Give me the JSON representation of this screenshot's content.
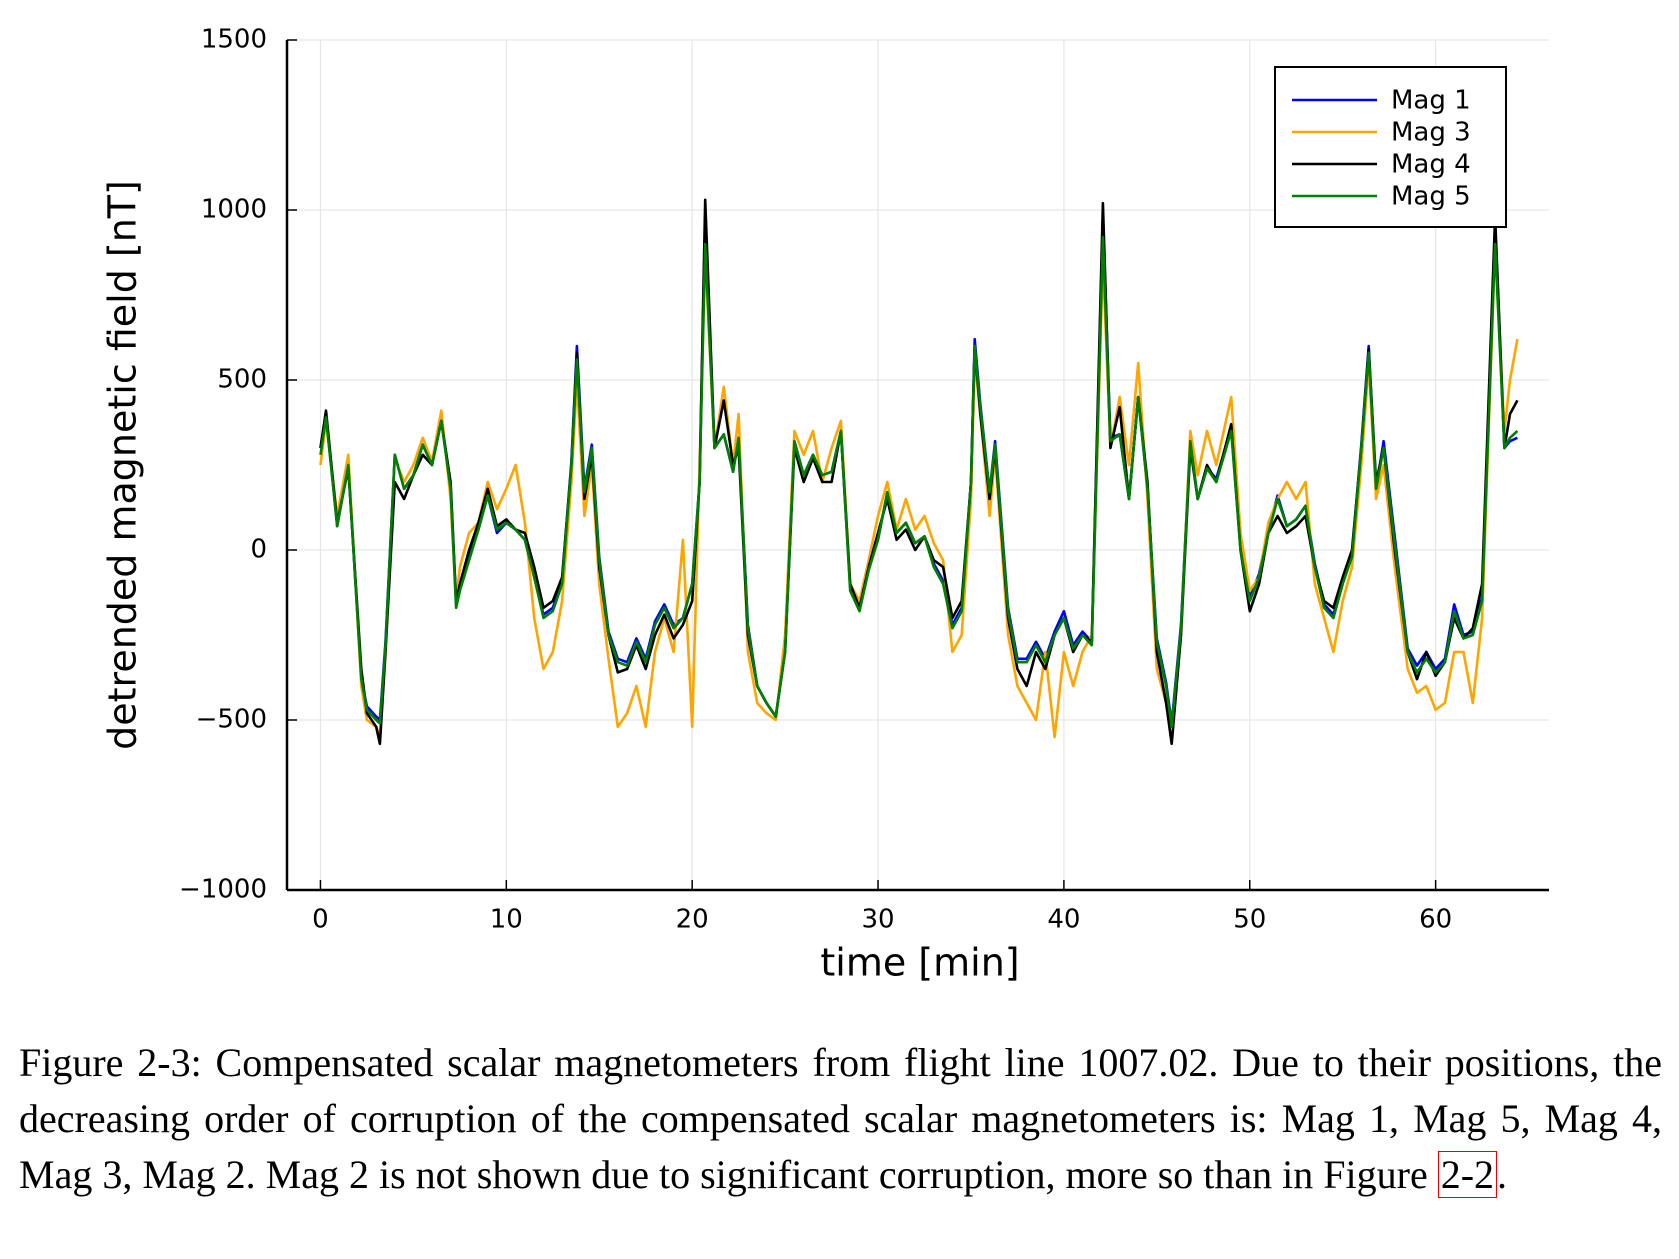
{
  "chart_data": {
    "type": "line",
    "xlabel": "time [min]",
    "ylabel": "detrended magnetic field [nT]",
    "xlim": [
      -1.8,
      66.1
    ],
    "ylim": [
      -1000,
      1500
    ],
    "xticks": [
      0,
      10,
      20,
      30,
      40,
      50,
      60
    ],
    "yticks": [
      {
        "value": -1000,
        "label": "−1000"
      },
      {
        "value": -500,
        "label": "−500"
      },
      0,
      500,
      1000,
      1500
    ],
    "grid": true,
    "legend": "top right",
    "x": [
      0,
      0.3,
      0.9,
      1.5,
      2.2,
      2.5,
      3,
      3.2,
      3.5,
      4,
      4.5,
      5,
      5.5,
      6,
      6.5,
      7,
      7.3,
      7.5,
      8,
      8.5,
      9,
      9.5,
      10,
      10.5,
      11,
      11.5,
      12,
      12.5,
      13,
      13.5,
      13.8,
      14.2,
      14.6,
      15,
      15.5,
      16,
      16.5,
      17,
      17.5,
      18,
      18.5,
      19,
      19.5,
      20,
      20.4,
      20.7,
      21.2,
      21.7,
      22.2,
      22.5,
      23,
      23.5,
      24,
      24.5,
      25,
      25.5,
      26,
      26.5,
      27,
      27.5,
      28,
      28.5,
      29,
      29.5,
      30,
      30.5,
      31,
      31.5,
      32,
      32.5,
      33,
      33.5,
      34,
      34.5,
      35,
      35.2,
      35.5,
      36,
      36.3,
      37,
      37.5,
      38,
      38.5,
      39,
      39.5,
      40,
      40.5,
      41,
      41.5,
      42.1,
      42.5,
      43,
      43.5,
      44,
      44.5,
      45,
      45.5,
      45.8,
      46.3,
      46.8,
      47.2,
      47.7,
      48.2,
      49,
      49.5,
      50,
      50.5,
      51,
      51.5,
      52,
      52.5,
      53,
      53.5,
      54,
      54.5,
      55,
      55.5,
      56,
      56.4,
      56.8,
      57.2,
      57.8,
      58.5,
      59,
      59.5,
      60,
      60.5,
      61,
      61.5,
      62,
      62.5,
      63.2,
      63.7,
      64,
      64.4
    ],
    "series": [
      {
        "name": "Mag 1",
        "color": "#0000ff",
        "values": [
          300,
          400,
          70,
          250,
          -380,
          -460,
          -490,
          -500,
          -270,
          280,
          180,
          220,
          310,
          250,
          380,
          190,
          -160,
          -110,
          -20,
          60,
          160,
          50,
          80,
          60,
          30,
          -80,
          -190,
          -170,
          -90,
          260,
          600,
          180,
          310,
          -20,
          -240,
          -320,
          -330,
          -260,
          -320,
          -210,
          -160,
          -220,
          -200,
          -100,
          200,
          980,
          300,
          340,
          230,
          330,
          -220,
          -400,
          -450,
          -490,
          -290,
          320,
          220,
          280,
          220,
          230,
          350,
          -110,
          -170,
          -50,
          30,
          170,
          50,
          80,
          20,
          40,
          -40,
          -90,
          -220,
          -170,
          200,
          620,
          430,
          170,
          320,
          -170,
          -320,
          -320,
          -270,
          -320,
          -240,
          -180,
          -280,
          -240,
          -270,
          980,
          330,
          340,
          150,
          450,
          180,
          -260,
          -390,
          -510,
          -220,
          320,
          150,
          240,
          210,
          360,
          10,
          -140,
          -70,
          60,
          160,
          70,
          90,
          130,
          -40,
          -160,
          -190,
          -90,
          -10,
          310,
          600,
          180,
          320,
          40,
          -290,
          -340,
          -300,
          -350,
          -320,
          -160,
          -250,
          -240,
          -140,
          960,
          300,
          320,
          330
        ]
      },
      {
        "name": "Mag 3",
        "color": "#ffa500",
        "values": [
          250,
          380,
          100,
          280,
          -400,
          -500,
          -520,
          -550,
          -300,
          270,
          200,
          250,
          330,
          260,
          410,
          150,
          -150,
          -50,
          50,
          80,
          200,
          120,
          180,
          250,
          80,
          -200,
          -350,
          -300,
          -150,
          200,
          500,
          100,
          250,
          -100,
          -320,
          -520,
          -480,
          -400,
          -520,
          -300,
          -200,
          -300,
          30,
          -520,
          250,
          870,
          300,
          480,
          250,
          400,
          -300,
          -450,
          -480,
          -500,
          -250,
          350,
          280,
          350,
          200,
          300,
          380,
          -100,
          -150,
          -30,
          100,
          200,
          60,
          150,
          60,
          100,
          20,
          -30,
          -300,
          -250,
          150,
          560,
          400,
          100,
          280,
          -250,
          -400,
          -450,
          -500,
          -300,
          -550,
          -300,
          -400,
          -300,
          -250,
          850,
          300,
          450,
          250,
          550,
          150,
          -350,
          -450,
          -520,
          -250,
          350,
          220,
          350,
          250,
          450,
          50,
          -120,
          -80,
          80,
          150,
          200,
          150,
          200,
          -100,
          -200,
          -300,
          -150,
          -50,
          250,
          550,
          150,
          250,
          -50,
          -350,
          -420,
          -400,
          -470,
          -450,
          -300,
          -300,
          -450,
          -200,
          900,
          350,
          500,
          620
        ]
      },
      {
        "name": "Mag 4",
        "color": "#000000",
        "values": [
          300,
          410,
          80,
          240,
          -350,
          -480,
          -520,
          -570,
          -300,
          200,
          150,
          220,
          280,
          250,
          380,
          200,
          -150,
          -100,
          0,
          80,
          180,
          70,
          90,
          60,
          50,
          -50,
          -170,
          -150,
          -80,
          250,
          580,
          150,
          280,
          -50,
          -250,
          -360,
          -350,
          -280,
          -350,
          -250,
          -190,
          -260,
          -220,
          -150,
          200,
          1030,
          300,
          440,
          250,
          300,
          -250,
          -400,
          -450,
          -490,
          -300,
          300,
          200,
          270,
          200,
          200,
          350,
          -100,
          -170,
          -50,
          50,
          150,
          30,
          60,
          0,
          40,
          -30,
          -50,
          -200,
          -150,
          200,
          600,
          400,
          150,
          300,
          -200,
          -350,
          -400,
          -300,
          -350,
          -250,
          -200,
          -300,
          -250,
          -270,
          1020,
          300,
          420,
          150,
          450,
          200,
          -300,
          -450,
          -570,
          -250,
          300,
          150,
          250,
          200,
          370,
          0,
          -180,
          -100,
          50,
          100,
          50,
          70,
          100,
          -50,
          -150,
          -170,
          -80,
          0,
          300,
          590,
          200,
          300,
          0,
          -300,
          -380,
          -300,
          -370,
          -330,
          -200,
          -260,
          -230,
          -100,
          980,
          300,
          400,
          440
        ]
      },
      {
        "name": "Mag 5",
        "color": "#008000",
        "values": [
          280,
          390,
          70,
          250,
          -380,
          -470,
          -500,
          -510,
          -280,
          280,
          180,
          220,
          310,
          250,
          380,
          180,
          -170,
          -120,
          -30,
          60,
          160,
          60,
          80,
          60,
          30,
          -80,
          -200,
          -180,
          -100,
          250,
          560,
          170,
          300,
          -30,
          -250,
          -330,
          -340,
          -270,
          -330,
          -220,
          -170,
          -230,
          -200,
          -100,
          200,
          900,
          300,
          340,
          230,
          330,
          -230,
          -400,
          -450,
          -490,
          -300,
          320,
          220,
          280,
          220,
          230,
          350,
          -120,
          -180,
          -60,
          30,
          170,
          50,
          80,
          20,
          40,
          -50,
          -100,
          -230,
          -180,
          200,
          600,
          420,
          170,
          310,
          -180,
          -330,
          -330,
          -280,
          -330,
          -250,
          -200,
          -290,
          -250,
          -280,
          920,
          320,
          340,
          150,
          450,
          180,
          -270,
          -400,
          -520,
          -230,
          320,
          150,
          240,
          200,
          350,
          0,
          -150,
          -80,
          50,
          150,
          70,
          90,
          130,
          -50,
          -170,
          -200,
          -100,
          -20,
          300,
          580,
          180,
          300,
          20,
          -300,
          -360,
          -320,
          -360,
          -330,
          -180,
          -260,
          -250,
          -150,
          900,
          300,
          330,
          350
        ]
      }
    ]
  },
  "caption": {
    "text": "Figure 2-3: Compensated scalar magnetometers from flight line 1007.02. Due to their positions, the decreasing order of corruption of the compensated scalar magnetometers is: Mag 1, Mag 5, Mag 4, Mag 3, Mag 2. Mag 2 is not shown due to significant corruption, more so than in Figure ",
    "ref": "2-2",
    "end": "."
  }
}
